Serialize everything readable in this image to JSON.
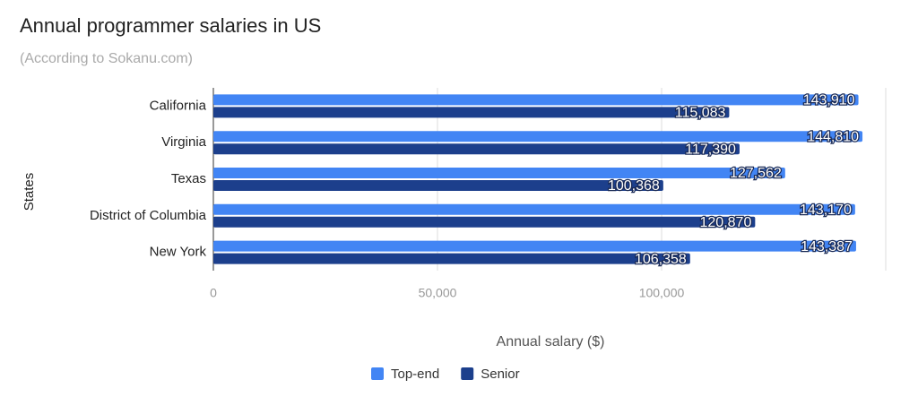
{
  "chart_data": {
    "type": "bar",
    "orientation": "horizontal",
    "title": "Annual programmer salaries in US",
    "subtitle": "(According to Sokanu.com)",
    "x_label": "Annual salary ($)",
    "y_label": "States",
    "categories": [
      "California",
      "Virginia",
      "Texas",
      "District of Columbia",
      "New York"
    ],
    "series": [
      {
        "name": "Top-end",
        "color": "#4285f4",
        "values": [
          143910,
          144810,
          127562,
          143170,
          143387
        ],
        "value_labels": [
          "143,910",
          "144,810",
          "127,562",
          "143,170",
          "143,387"
        ]
      },
      {
        "name": "Senior",
        "color": "#1c3f8c",
        "values": [
          115083,
          117390,
          100368,
          120870,
          106358
        ],
        "value_labels": [
          "115,083",
          "117,390",
          "100,368",
          "120,870",
          "106,358"
        ]
      }
    ],
    "xlim": [
      0,
      150000
    ],
    "xticks": [
      0,
      {
        "value": 50000,
        "label": "50,000"
      },
      {
        "value": 100000,
        "label": "100,000"
      }
    ],
    "grid": true,
    "legend": "bottom"
  }
}
